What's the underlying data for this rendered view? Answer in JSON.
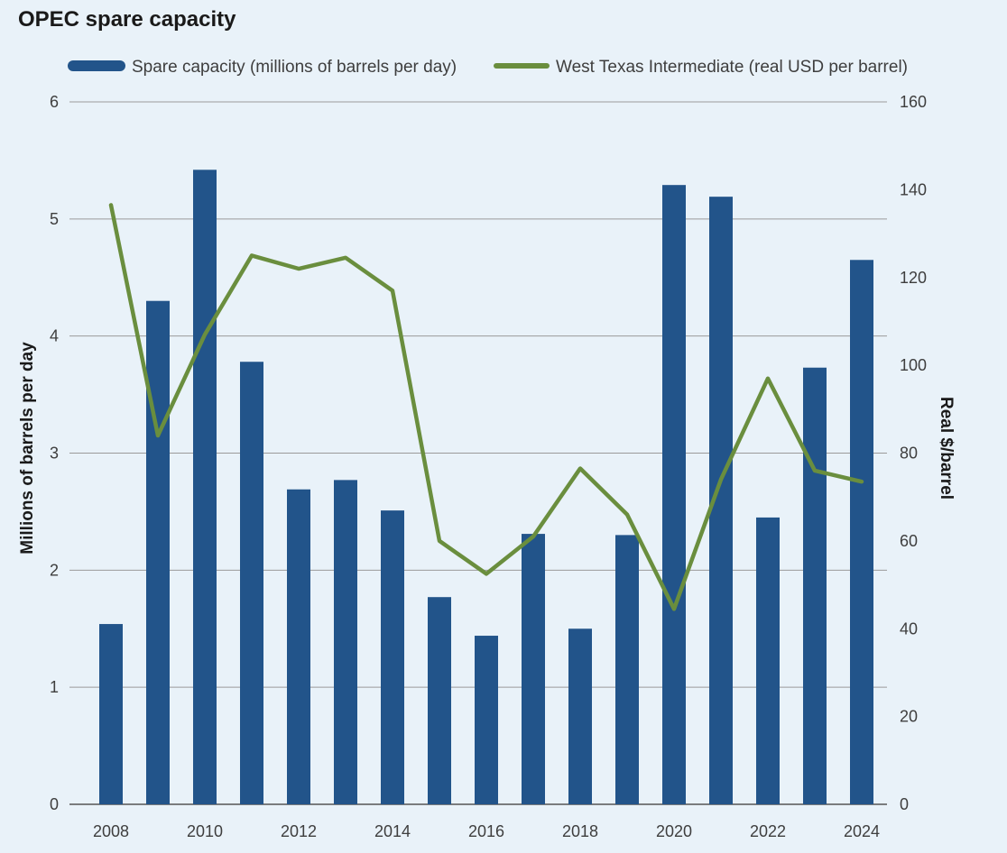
{
  "chart_data": {
    "type": "bar",
    "title": "OPEC spare capacity",
    "x": [
      2008,
      2009,
      2010,
      2011,
      2012,
      2013,
      2014,
      2015,
      2016,
      2017,
      2018,
      2019,
      2020,
      2021,
      2022,
      2023,
      2024
    ],
    "x_tick_labels": [
      "2008",
      "2010",
      "2012",
      "2014",
      "2016",
      "2018",
      "2020",
      "2022",
      "2024"
    ],
    "series": [
      {
        "name": "Spare capacity (millions of barrels per day)",
        "type": "bar",
        "axis": "left",
        "color": "#22548a",
        "values": [
          1.54,
          4.3,
          5.42,
          3.78,
          2.69,
          2.77,
          2.51,
          1.77,
          1.44,
          2.31,
          1.5,
          2.3,
          5.29,
          5.19,
          2.45,
          3.73,
          4.65
        ]
      },
      {
        "name": "West Texas Intermediate (real USD per barrel)",
        "type": "line",
        "axis": "right",
        "color": "#6a8e3e",
        "values": [
          136.5,
          84,
          107,
          125,
          122,
          124.5,
          117,
          60,
          52.5,
          61,
          76.5,
          66,
          44.5,
          74,
          97,
          76,
          73.5
        ]
      }
    ],
    "ylabel": "Millions of barrels per day",
    "y2label": "Real $/barrel",
    "ylim": [
      0,
      6
    ],
    "y2lim": [
      0,
      160
    ],
    "yticks": [
      "0",
      "1",
      "2",
      "3",
      "4",
      "5",
      "6"
    ],
    "y2ticks": [
      "0",
      "20",
      "40",
      "60",
      "80",
      "100",
      "120",
      "140",
      "160"
    ],
    "grid": true,
    "legend_position": "top"
  }
}
